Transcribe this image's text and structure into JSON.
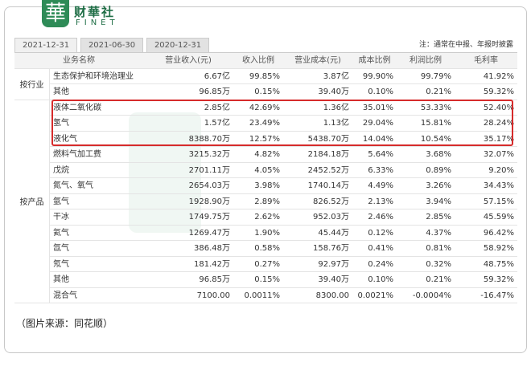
{
  "logo": {
    "mark": "華",
    "name": "财華社",
    "en": "FINET"
  },
  "tabs": [
    "2021-12-31",
    "2021-06-30",
    "2020-12-31"
  ],
  "note": "注：通常在中报、年报时披露",
  "table": {
    "header": [
      "业务名称",
      "营业收入(元)",
      "收入比例",
      "营业成本(元)",
      "成本比例",
      "利润比例",
      "毛利率"
    ],
    "groups": [
      {
        "label": "按行业",
        "rows": [
          [
            "生态保护和环境治理业",
            "6.67亿",
            "99.85%",
            "3.87亿",
            "99.90%",
            "99.79%",
            "41.92%"
          ],
          [
            "其他",
            "96.85万",
            "0.15%",
            "39.40万",
            "0.10%",
            "0.21%",
            "59.32%"
          ]
        ]
      },
      {
        "label": "按产品",
        "rows": [
          [
            "液体二氧化碳",
            "2.85亿",
            "42.69%",
            "1.36亿",
            "35.01%",
            "53.33%",
            "52.40%"
          ],
          [
            "氢气",
            "1.57亿",
            "23.49%",
            "1.13亿",
            "29.04%",
            "15.81%",
            "28.24%"
          ],
          [
            "液化气",
            "8388.70万",
            "12.57%",
            "5438.70万",
            "14.04%",
            "10.54%",
            "35.17%"
          ],
          [
            "燃料气加工费",
            "3215.32万",
            "4.82%",
            "2184.18万",
            "5.64%",
            "3.68%",
            "32.07%"
          ],
          [
            "戊烷",
            "2701.11万",
            "4.05%",
            "2452.52万",
            "6.33%",
            "0.89%",
            "9.20%"
          ],
          [
            "氮气、氧气",
            "2654.03万",
            "3.98%",
            "1740.14万",
            "4.49%",
            "3.26%",
            "34.43%"
          ],
          [
            "氩气",
            "1928.90万",
            "2.89%",
            "826.52万",
            "2.13%",
            "3.94%",
            "57.15%"
          ],
          [
            "干冰",
            "1749.75万",
            "2.62%",
            "952.03万",
            "2.46%",
            "2.85%",
            "45.59%"
          ],
          [
            "氦气",
            "1269.47万",
            "1.90%",
            "45.44万",
            "0.12%",
            "4.37%",
            "96.42%"
          ],
          [
            "氙气",
            "386.48万",
            "0.58%",
            "158.76万",
            "0.41%",
            "0.81%",
            "58.92%"
          ],
          [
            "氖气",
            "181.42万",
            "0.27%",
            "92.97万",
            "0.24%",
            "0.32%",
            "48.75%"
          ],
          [
            "其他",
            "96.85万",
            "0.15%",
            "39.40万",
            "0.10%",
            "0.21%",
            "59.32%"
          ],
          [
            "混合气",
            "7100.00",
            "0.0011%",
            "8300.00",
            "0.0021%",
            "-0.0004%",
            "-16.47%"
          ]
        ]
      }
    ]
  },
  "caption": "（图片来源：同花顺）"
}
